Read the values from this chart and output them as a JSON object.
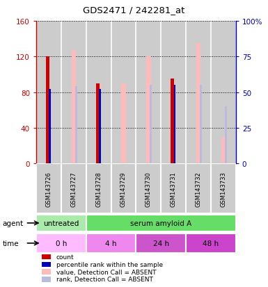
{
  "title": "GDS2471 / 242281_at",
  "samples": [
    "GSM143726",
    "GSM143727",
    "GSM143728",
    "GSM143729",
    "GSM143730",
    "GSM143731",
    "GSM143732",
    "GSM143733"
  ],
  "count_values": [
    120,
    0,
    90,
    0,
    0,
    95,
    0,
    0
  ],
  "rank_values": [
    52,
    0,
    52,
    0,
    0,
    55,
    0,
    0
  ],
  "absent_value_values": [
    0,
    127,
    90,
    90,
    120,
    90,
    135,
    30
  ],
  "absent_rank_values": [
    0,
    54,
    0,
    0,
    55,
    0,
    55,
    40
  ],
  "count_color": "#cc0000",
  "rank_color": "#0000bb",
  "absent_value_color": "#ffbbbb",
  "absent_rank_color": "#bbbbdd",
  "ylim_left": [
    0,
    160
  ],
  "ylim_right": [
    0,
    100
  ],
  "yticks_left": [
    0,
    40,
    80,
    120,
    160
  ],
  "yticks_right": [
    0,
    25,
    50,
    75,
    100
  ],
  "ytick_labels_right": [
    "0",
    "25",
    "50",
    "75",
    "100%"
  ],
  "agent_labels": [
    {
      "text": "untreated",
      "start": 0,
      "end": 2,
      "color": "#aaeaaa"
    },
    {
      "text": "serum amyloid A",
      "start": 2,
      "end": 8,
      "color": "#66dd66"
    }
  ],
  "time_labels": [
    {
      "text": "0 h",
      "start": 0,
      "end": 2,
      "color": "#ffbbff"
    },
    {
      "text": "4 h",
      "start": 2,
      "end": 4,
      "color": "#ee88ee"
    },
    {
      "text": "24 h",
      "start": 4,
      "end": 6,
      "color": "#cc55cc"
    },
    {
      "text": "48 h",
      "start": 6,
      "end": 8,
      "color": "#cc44cc"
    }
  ],
  "legend_items": [
    {
      "label": "count",
      "color": "#cc0000",
      "marker": "s"
    },
    {
      "label": "percentile rank within the sample",
      "color": "#0000bb",
      "marker": "s"
    },
    {
      "label": "value, Detection Call = ABSENT",
      "color": "#ffbbbb",
      "marker": "s"
    },
    {
      "label": "rank, Detection Call = ABSENT",
      "color": "#bbbbdd",
      "marker": "s"
    }
  ],
  "background_color": "#ffffff",
  "sample_bg_color": "#cccccc",
  "sample_border_color": "#aaaaaa"
}
